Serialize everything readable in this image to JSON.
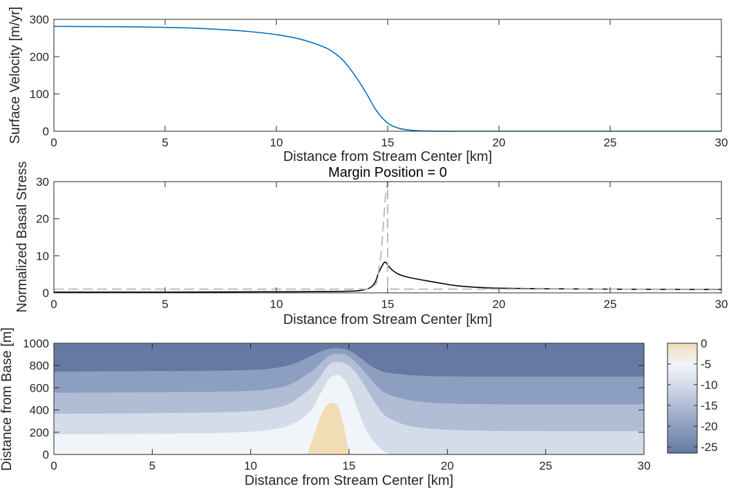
{
  "chart_data": [
    {
      "type": "line",
      "title": "",
      "xlabel": "Distance from Stream Center [km]",
      "ylabel": "Surface Velocity [m/yr]",
      "xlim": [
        0,
        30
      ],
      "ylim": [
        0,
        300
      ],
      "xticks": [
        "0",
        "5",
        "10",
        "15",
        "20",
        "25",
        "30"
      ],
      "yticks": [
        "0",
        "100",
        "200",
        "300"
      ],
      "grid": false,
      "series": [
        {
          "color": "#0072bd",
          "style": "solid",
          "x": [
            0,
            2,
            4,
            6,
            8,
            9,
            10,
            11,
            12,
            12.5,
            13,
            13.5,
            14,
            14.5,
            15,
            15.5,
            16,
            16.5,
            17,
            17.5,
            18,
            20,
            25,
            30
          ],
          "y": [
            281,
            280.5,
            279.5,
            277,
            271,
            266,
            259,
            248,
            229,
            214,
            190,
            152,
            106,
            55,
            22,
            8,
            3,
            1,
            0.3,
            0,
            0,
            0,
            0,
            0
          ]
        }
      ]
    },
    {
      "type": "line",
      "title": "Margin Position = 0",
      "xlabel": "Distance from Stream Center [km]",
      "ylabel": "Normalized Basal Stress",
      "xlim": [
        0,
        30
      ],
      "ylim": [
        0,
        30
      ],
      "xticks": [
        "0",
        "5",
        "10",
        "15",
        "20",
        "25",
        "30"
      ],
      "yticks": [
        "0",
        "10",
        "20",
        "30"
      ],
      "grid": false,
      "series": [
        {
          "color": "#000000",
          "style": "solid",
          "x": [
            0,
            5,
            10,
            13,
            14,
            14.4,
            14.6,
            14.8,
            14.9,
            15.0,
            15.2,
            15.5,
            16,
            17,
            18,
            19,
            20,
            22,
            25,
            30
          ],
          "y": [
            0.2,
            0.2,
            0.3,
            0.4,
            0.9,
            2.5,
            5.5,
            7.8,
            8.3,
            7.5,
            6.2,
            5.0,
            4.1,
            3.0,
            2.0,
            1.5,
            1.25,
            1.1,
            1.0,
            0.9
          ]
        },
        {
          "color": "#bdbdbd",
          "style": "dashed",
          "x": [
            0,
            14.2,
            14.5,
            14.7,
            14.8,
            14.9,
            15.0,
            15.0,
            15.2,
            17,
            30
          ],
          "y": [
            1,
            1,
            2.5,
            10,
            18,
            26,
            30,
            1,
            1,
            1,
            1
          ]
        }
      ]
    },
    {
      "type": "heatmap",
      "title": "",
      "xlabel": "Distance from Stream Center [km]",
      "ylabel": "Distance from Base [m]",
      "xlim": [
        0,
        30
      ],
      "ylim": [
        0,
        1000
      ],
      "xticks": [
        "0",
        "5",
        "10",
        "15",
        "20",
        "25",
        "30"
      ],
      "yticks": [
        "0",
        "200",
        "400",
        "600",
        "800",
        "1000"
      ],
      "colorbar": {
        "ticks": [
          "0",
          "-5",
          "-10",
          "-15",
          "-20",
          "-25"
        ],
        "range": [
          -26.5,
          0
        ]
      },
      "contour_bands": [
        {
          "level": "> -2.5",
          "color": "#f1dcb6"
        },
        {
          "level": "-7.5 to -2.5",
          "color": "#f1f4f9"
        },
        {
          "level": "-12.5 to -7.5",
          "color": "#d5dce9"
        },
        {
          "level": "-17.5 to -12.5",
          "color": "#b0bdd5"
        },
        {
          "level": "-22.5 to -17.5",
          "color": "#8d9fc0"
        },
        {
          "level": "< -22.5",
          "color": "#6579a3"
        }
      ],
      "boundaries": [
        {
          "x": [
            0,
            4,
            8,
            10,
            11,
            12,
            13,
            13.5,
            14,
            14.5,
            15,
            16,
            17,
            18,
            20,
            25,
            30
          ],
          "y": [
            180,
            184,
            192,
            205,
            222,
            265,
            380,
            530,
            680,
            710,
            600,
            180,
            5,
            0,
            0,
            0,
            0
          ]
        },
        {
          "x": [
            0,
            4,
            8,
            10,
            11,
            12,
            13,
            13.5,
            14,
            14.5,
            15,
            15.5,
            16,
            16.5,
            17,
            18,
            19,
            20,
            22,
            25,
            30
          ],
          "y": [
            365,
            370,
            378,
            390,
            410,
            460,
            590,
            690,
            810,
            830,
            800,
            700,
            560,
            420,
            330,
            260,
            235,
            222,
            213,
            210,
            210
          ]
        },
        {
          "x": [
            0,
            4,
            8,
            10,
            11,
            12,
            13,
            13.5,
            14,
            14.5,
            15,
            15.5,
            16,
            16.5,
            17,
            18,
            19,
            20,
            22,
            25,
            30
          ],
          "y": [
            555,
            558,
            563,
            572,
            588,
            630,
            735,
            810,
            890,
            905,
            880,
            800,
            700,
            600,
            540,
            490,
            468,
            458,
            452,
            450,
            450
          ]
        },
        {
          "x": [
            0,
            4,
            8,
            10,
            11,
            12,
            13,
            13.5,
            14,
            14.5,
            15,
            15.5,
            16,
            16.5,
            17,
            18,
            19,
            20,
            22,
            25,
            30
          ],
          "y": [
            745,
            748,
            752,
            760,
            772,
            805,
            880,
            920,
            950,
            955,
            935,
            880,
            810,
            760,
            735,
            715,
            706,
            702,
            700,
            700,
            700
          ]
        }
      ],
      "core": {
        "x": [
          12.9,
          13.0,
          13.2,
          13.4,
          13.6,
          13.8,
          14.0,
          14.2,
          14.4,
          14.6,
          14.8,
          14.95,
          15.0
        ],
        "y": [
          0,
          60,
          160,
          260,
          360,
          420,
          460,
          465,
          440,
          350,
          200,
          60,
          0
        ]
      }
    }
  ]
}
